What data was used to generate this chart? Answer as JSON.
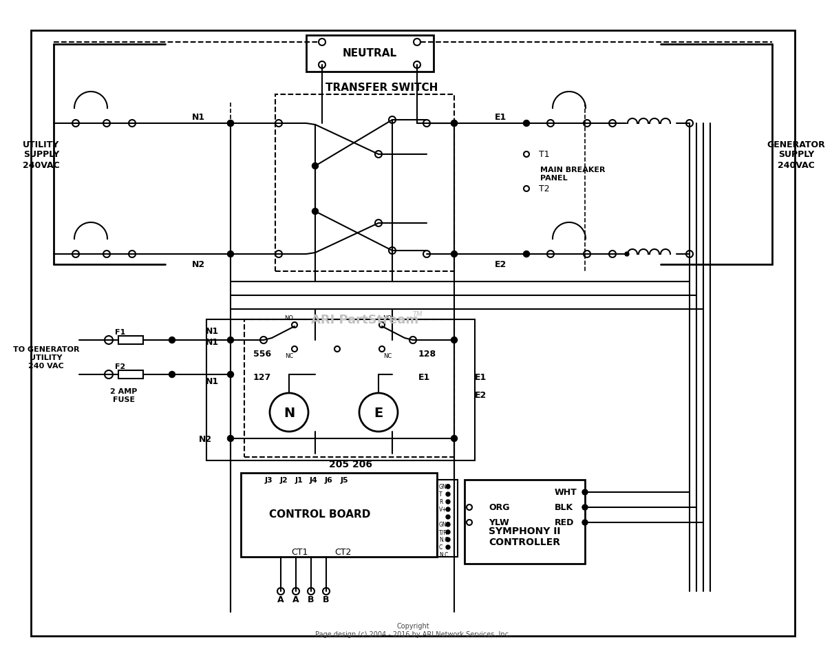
{
  "bg_color": "#ffffff",
  "watermark": "ARI PartStream",
  "copyright": "Copyright",
  "footer": "Page design (c) 2004 - 2016 by ARI Network Services, Inc.",
  "labels": {
    "utility_supply": "UTILITY\nSUPPLY\n240VAC",
    "generator_supply": "GENERATOR\nSUPPLY\n240VAC",
    "neutral": "NEUTRAL",
    "transfer_switch": "TRANSFER SWITCH",
    "main_breaker": "MAIN BREAKER\nPANEL",
    "to_generator": "TO GENERATOR\nUTILITY\n240 VAC",
    "fuse": "2 AMP\nFUSE",
    "control_board": "CONTROL BOARD",
    "symphony": "SYMPHONY II\nCONTROLLER",
    "N1": "N1",
    "N2": "N2",
    "E1": "E1",
    "E2": "E2",
    "T1": "T1",
    "T2": "T2",
    "F1": "F1",
    "F2": "F2",
    "num_556": "556",
    "num_127": "127",
    "num_128": "128",
    "num_205_206": "205 206",
    "J3": "J3",
    "J2": "J2",
    "J1": "J1",
    "J4": "J4",
    "J6": "J6",
    "J5": "J5",
    "CT1": "CT1",
    "CT2": "CT2",
    "A": "A",
    "B": "B",
    "WHT": "WHT",
    "BLK": "BLK",
    "RED": "RED",
    "ORG": "ORG",
    "YLW": "YLW",
    "N_lbl": "N",
    "E_lbl": "E",
    "NC": "NC",
    "NO": "NO"
  },
  "gnd_labels": [
    "GND",
    "T",
    "R",
    "V+",
    "",
    "GND",
    "T/R",
    "N.O",
    "C",
    "N.C"
  ]
}
